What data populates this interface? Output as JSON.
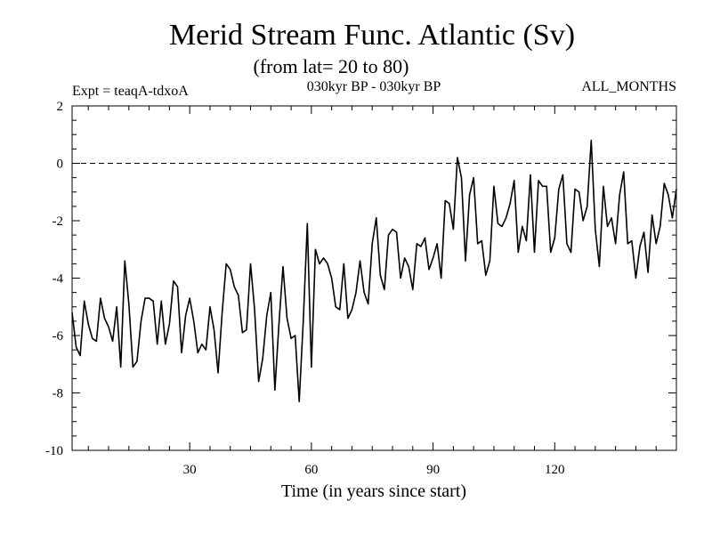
{
  "chart_data": {
    "type": "line",
    "title": "Merid Stream Func. Atlantic (Sv)",
    "subtitle": "(from lat= 20 to 80)",
    "info_left": "Expt = teaqA-tdxoA",
    "info_center": "030kyr BP - 030kyr BP",
    "info_right": "ALL_MONTHS",
    "xlabel": "Time (in years since start)",
    "ylabel": "",
    "xlim": [
      1,
      150
    ],
    "ylim": [
      -10,
      2
    ],
    "xticks": [
      30,
      60,
      90,
      120
    ],
    "xtick_labels": [
      "30",
      "60",
      "90",
      "120"
    ],
    "yticks": [
      2,
      0,
      -2,
      -4,
      -6,
      -8,
      -10
    ],
    "ytick_labels": [
      "2",
      "0",
      "-2",
      "-4",
      "-6",
      "-8",
      "-10"
    ],
    "reference_line": {
      "y": 0,
      "style": "dashed"
    },
    "grid": false,
    "series": [
      {
        "name": "Merid Stream Func. Atlantic",
        "x": [
          1,
          2,
          3,
          4,
          5,
          6,
          7,
          8,
          9,
          10,
          11,
          12,
          13,
          14,
          15,
          16,
          17,
          18,
          19,
          20,
          21,
          22,
          23,
          24,
          25,
          26,
          27,
          28,
          29,
          30,
          31,
          32,
          33,
          34,
          35,
          36,
          37,
          38,
          39,
          40,
          41,
          42,
          43,
          44,
          45,
          46,
          47,
          48,
          49,
          50,
          51,
          52,
          53,
          54,
          55,
          56,
          57,
          58,
          59,
          60,
          61,
          62,
          63,
          64,
          65,
          66,
          67,
          68,
          69,
          70,
          71,
          72,
          73,
          74,
          75,
          76,
          77,
          78,
          79,
          80,
          81,
          82,
          83,
          84,
          85,
          86,
          87,
          88,
          89,
          90,
          91,
          92,
          93,
          94,
          95,
          96,
          97,
          98,
          99,
          100,
          101,
          102,
          103,
          104,
          105,
          106,
          107,
          108,
          109,
          110,
          111,
          112,
          113,
          114,
          115,
          116,
          117,
          118,
          119,
          120,
          121,
          122,
          123,
          124,
          125,
          126,
          127,
          128,
          129,
          130,
          131,
          132,
          133,
          134,
          135,
          136,
          137,
          138,
          139,
          140,
          141,
          142,
          143,
          144,
          145,
          146,
          147,
          148,
          149,
          150
        ],
        "values": [
          -5.2,
          -6.4,
          -6.7,
          -4.8,
          -5.6,
          -6.1,
          -6.2,
          -4.7,
          -5.4,
          -5.7,
          -6.2,
          -5.0,
          -7.1,
          -3.4,
          -4.9,
          -7.1,
          -6.9,
          -5.5,
          -4.7,
          -4.7,
          -4.8,
          -6.3,
          -4.8,
          -6.3,
          -5.6,
          -4.1,
          -4.3,
          -6.6,
          -5.3,
          -4.7,
          -5.5,
          -6.6,
          -6.3,
          -6.5,
          -5.0,
          -5.8,
          -7.3,
          -5.2,
          -3.5,
          -3.7,
          -4.3,
          -4.6,
          -5.9,
          -5.8,
          -3.5,
          -5.1,
          -7.6,
          -6.8,
          -5.3,
          -4.5,
          -7.9,
          -5.6,
          -3.6,
          -5.4,
          -6.1,
          -6.0,
          -8.3,
          -5.5,
          -2.1,
          -7.1,
          -3.0,
          -3.5,
          -3.3,
          -3.5,
          -4.0,
          -5.0,
          -5.1,
          -3.5,
          -5.4,
          -5.1,
          -4.5,
          -3.4,
          -4.5,
          -4.9,
          -2.8,
          -1.9,
          -3.9,
          -4.4,
          -2.5,
          -2.3,
          -2.4,
          -4.0,
          -3.3,
          -3.6,
          -4.4,
          -2.8,
          -2.9,
          -2.6,
          -3.7,
          -3.3,
          -2.8,
          -4.0,
          -1.3,
          -1.4,
          -2.3,
          0.2,
          -0.5,
          -3.4,
          -1.1,
          -0.5,
          -2.8,
          -2.7,
          -3.9,
          -3.4,
          -0.8,
          -2.1,
          -2.2,
          -1.9,
          -1.4,
          -0.6,
          -3.1,
          -2.2,
          -2.7,
          -0.4,
          -3.1,
          -0.6,
          -0.8,
          -0.8,
          -3.1,
          -2.6,
          -0.9,
          -0.4,
          -2.8,
          -3.1,
          -0.9,
          -1.0,
          -2.0,
          -1.5,
          0.8,
          -2.3,
          -3.6,
          -0.8,
          -2.2,
          -1.9,
          -2.8,
          -1.1,
          -0.3,
          -2.8,
          -2.7,
          -4.0,
          -2.9,
          -2.4,
          -3.8,
          -1.8,
          -2.8,
          -2.2,
          -0.7,
          -1.1,
          -1.9,
          -0.9
        ]
      }
    ]
  }
}
